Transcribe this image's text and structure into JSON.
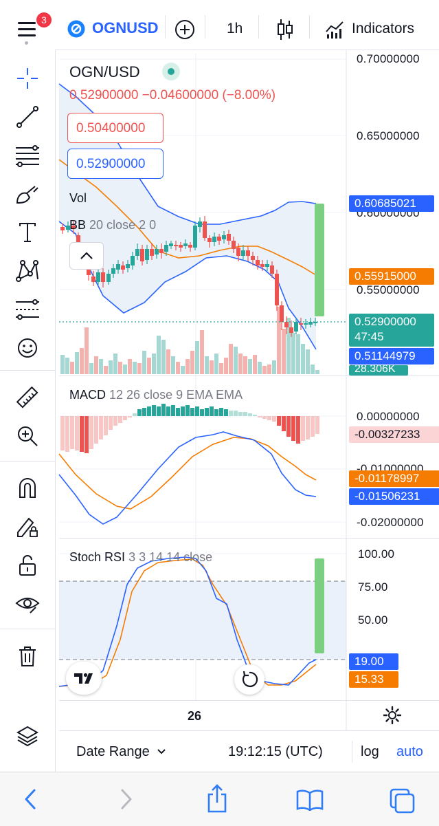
{
  "topbar": {
    "notif_count": "3",
    "symbol": "OGNUSD",
    "interval": "1h",
    "indicators_label": "Indicators"
  },
  "legend": {
    "pair": "OGN/USD",
    "last_line": "0.52900000  −0.04600000 (−8.00%)",
    "sell_price": "0.50400000",
    "buy_price": "0.52900000",
    "vol_label": "Vol",
    "bb_name": "BB",
    "bb_params": "20 close 2 0"
  },
  "price_axis": {
    "labels": [
      "0.70000000",
      "0.65000000",
      "0.60000000",
      "0.55000000"
    ],
    "tags": {
      "bb_upper": "0.60685021",
      "bb_basis": "0.55915000",
      "last_price": "0.52900000",
      "countdown": "47:45",
      "bb_lower": "0.51144979",
      "volume": "28.306K"
    }
  },
  "macd": {
    "name": "MACD",
    "params": "12 26 close 9 EMA EMA",
    "axis_labels": [
      "0.00000000",
      "-0.01000000",
      "-0.02000000"
    ],
    "tags": {
      "histogram": "-0.00327233",
      "signal": "-0.01178997",
      "macd": "-0.01506231"
    }
  },
  "stoch": {
    "name": "Stoch RSI",
    "params": "3 3 14 14 close",
    "axis_labels": [
      "100.00",
      "75.00",
      "50.00"
    ],
    "tags": {
      "k": "19.00",
      "d": "15.33"
    }
  },
  "time_axis": {
    "label": "26"
  },
  "bottom": {
    "date_range": "Date Range",
    "clock": "19:12:15 (UTC)",
    "log": "log",
    "auto": "auto"
  },
  "colors": {
    "up": "#26a69a",
    "down": "#ef5350",
    "bb_fill": "#e8f0f8",
    "blue": "#2962ff",
    "orange": "#f57c00",
    "green_tag": "#26a69a"
  },
  "icons": [
    "menu-icon",
    "ogn-logo-icon",
    "plus-circle-icon",
    "candles-icon",
    "indicators-icon",
    "crosshair-icon",
    "trendline-icon",
    "fib-icon",
    "brush-icon",
    "text-icon",
    "pattern-icon",
    "prediction-icon",
    "emoji-icon",
    "ruler-icon",
    "zoom-in-icon",
    "magnet-icon",
    "lock-drawing-icon",
    "unlock-icon",
    "eye-icon",
    "trash-icon",
    "layers-icon",
    "tradingview-logo-icon",
    "reset-icon",
    "settings-icon",
    "back-icon",
    "forward-icon",
    "share-icon",
    "bookmarks-icon",
    "tabs-icon"
  ]
}
